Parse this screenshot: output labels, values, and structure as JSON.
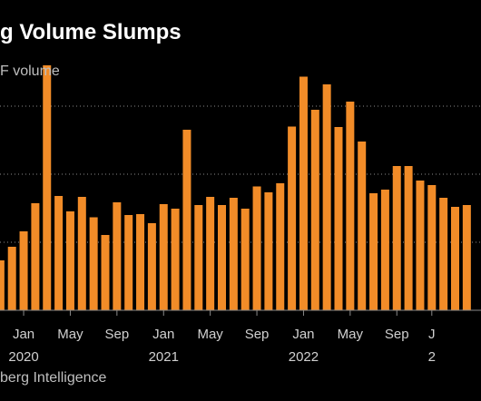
{
  "header": {
    "title": "g Volume Slumps",
    "subtitle": "F volume"
  },
  "footer": {
    "source": "berg Intelligence"
  },
  "colors": {
    "bar": "#f28c28",
    "grid": "#8a8a8a",
    "background": "#000000"
  },
  "chart_data": {
    "type": "bar",
    "title": "g Volume Slumps",
    "subtitle": "F volume",
    "grid": true,
    "x_tick_labels": [
      {
        "index": 0,
        "month": "Jan",
        "year": "2020"
      },
      {
        "index": 4,
        "month": "May",
        "year": ""
      },
      {
        "index": 8,
        "month": "Sep",
        "year": ""
      },
      {
        "index": 12,
        "month": "Jan",
        "year": "2021"
      },
      {
        "index": 16,
        "month": "May",
        "year": ""
      },
      {
        "index": 20,
        "month": "Sep",
        "year": ""
      },
      {
        "index": 24,
        "month": "Jan",
        "year": "2022"
      },
      {
        "index": 28,
        "month": "May",
        "year": ""
      },
      {
        "index": 32,
        "month": "Sep",
        "year": ""
      },
      {
        "index": 35,
        "month": "J",
        "year": "2"
      }
    ],
    "categories": [
      "Nov 2019",
      "Dec 2019",
      "Jan 2020",
      "Feb 2020",
      "Mar 2020",
      "Apr 2020",
      "May 2020",
      "Jun 2020",
      "Jul 2020",
      "Aug 2020",
      "Sep 2020",
      "Oct 2020",
      "Nov 2020",
      "Dec 2020",
      "Jan 2021",
      "Feb 2021",
      "Mar 2021",
      "Apr 2021",
      "May 2021",
      "Jun 2021",
      "Jul 2021",
      "Aug 2021",
      "Sep 2021",
      "Oct 2021",
      "Nov 2021",
      "Dec 2021",
      "Jan 2022",
      "Feb 2022",
      "Mar 2022",
      "Apr 2022",
      "May 2022",
      "Jun 2022",
      "Jul 2022",
      "Aug 2022",
      "Sep 2022",
      "Oct 2022",
      "Nov 2022",
      "Dec 2022",
      "Jan 2023",
      "Feb 2023",
      "Mar 2023"
    ],
    "values": [
      1.1,
      1.4,
      1.74,
      2.36,
      5.4,
      2.52,
      2.18,
      2.5,
      2.05,
      1.66,
      2.38,
      2.1,
      2.12,
      1.92,
      2.34,
      2.24,
      3.98,
      2.32,
      2.5,
      2.32,
      2.48,
      2.24,
      2.73,
      2.6,
      2.8,
      4.05,
      5.15,
      4.42,
      4.98,
      4.04,
      4.6,
      3.72,
      2.58,
      2.66,
      3.18,
      3.18,
      2.86,
      2.76,
      2.48,
      2.28,
      2.32
    ],
    "ylim": [
      0,
      6
    ]
  }
}
